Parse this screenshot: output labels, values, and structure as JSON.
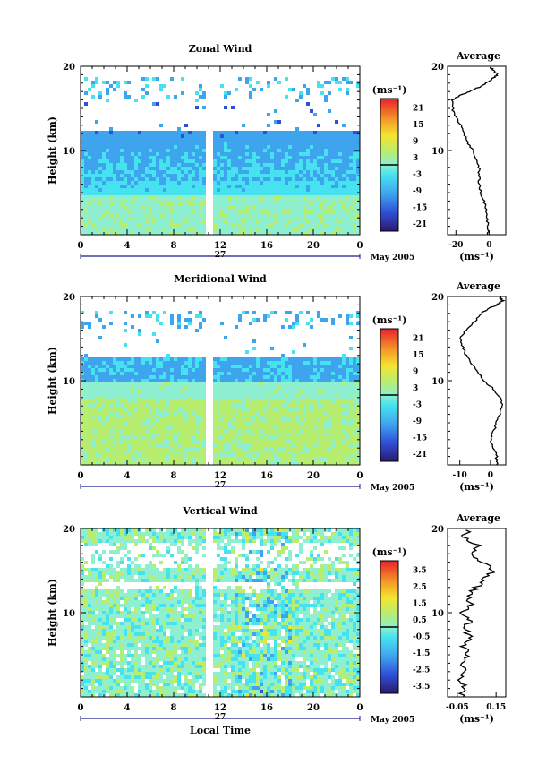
{
  "chart_data": [
    {
      "type": "heatmap",
      "title": "Zonal Wind",
      "ylabel": "Height (km)",
      "xlabel": "",
      "ylim": [
        0,
        20
      ],
      "xlim": [
        0,
        24
      ],
      "x_ticks": [
        "0",
        "4",
        "8",
        "12",
        "16",
        "20",
        "0"
      ],
      "y_ticks": [
        "20",
        "10"
      ],
      "date_day": "27",
      "date_label": "May 2005",
      "colorbar": {
        "unit": "(ms⁻¹)",
        "ticks": [
          "21",
          "15",
          "9",
          "3",
          "-3",
          "-9",
          "-15",
          "-21"
        ],
        "range": [
          -24,
          24
        ]
      },
      "average": {
        "title": "Average",
        "unit": "(ms⁻¹)",
        "x_ticks": [
          "-20",
          "0"
        ],
        "y_ticks": [
          "20",
          "10"
        ],
        "xlim": [
          -25,
          10
        ],
        "profile": [
          [
            0,
            -0.5
          ],
          [
            1,
            -1
          ],
          [
            2,
            -1
          ],
          [
            3,
            -2
          ],
          [
            4,
            -3
          ],
          [
            5,
            -5
          ],
          [
            6,
            -6
          ],
          [
            7,
            -6
          ],
          [
            8,
            -6
          ],
          [
            9,
            -8
          ],
          [
            10,
            -10
          ],
          [
            11,
            -13
          ],
          [
            12,
            -15
          ],
          [
            13,
            -17
          ],
          [
            14,
            -20
          ],
          [
            15,
            -22
          ],
          [
            16,
            -22
          ],
          [
            16.5,
            -18
          ],
          [
            17,
            -12
          ],
          [
            17.5,
            -6
          ],
          [
            18,
            -2
          ],
          [
            18.5,
            2
          ],
          [
            19,
            5
          ],
          [
            19.5,
            3
          ],
          [
            20,
            0
          ]
        ]
      }
    },
    {
      "type": "heatmap",
      "title": "Meridional Wind",
      "ylabel": "Height (km)",
      "xlabel": "",
      "ylim": [
        0,
        20
      ],
      "xlim": [
        0,
        24
      ],
      "x_ticks": [
        "0",
        "4",
        "8",
        "12",
        "16",
        "20",
        "0"
      ],
      "y_ticks": [
        "20",
        "10"
      ],
      "date_day": "27",
      "date_label": "May 2005",
      "colorbar": {
        "unit": "(ms⁻¹)",
        "ticks": [
          "21",
          "15",
          "9",
          "3",
          "-3",
          "-9",
          "-15",
          "-21"
        ],
        "range": [
          -24,
          24
        ]
      },
      "average": {
        "title": "Average",
        "unit": "(ms⁻¹)",
        "x_ticks": [
          "-10",
          "0"
        ],
        "y_ticks": [
          "20",
          "10"
        ],
        "xlim": [
          -14,
          5
        ],
        "profile": [
          [
            0,
            2
          ],
          [
            1,
            2
          ],
          [
            2,
            1
          ],
          [
            3,
            0
          ],
          [
            4,
            1
          ],
          [
            5,
            2
          ],
          [
            6,
            3
          ],
          [
            7,
            4
          ],
          [
            8,
            3
          ],
          [
            9,
            1
          ],
          [
            10,
            -2
          ],
          [
            11,
            -4
          ],
          [
            12,
            -6
          ],
          [
            13,
            -8
          ],
          [
            14,
            -9
          ],
          [
            15,
            -10
          ],
          [
            16,
            -8
          ],
          [
            17,
            -5
          ],
          [
            18,
            -3
          ],
          [
            18.5,
            -1
          ],
          [
            19,
            2
          ],
          [
            19.5,
            4
          ],
          [
            20,
            3
          ]
        ]
      }
    },
    {
      "type": "heatmap",
      "title": "Vertical Wind",
      "ylabel": "Height (km)",
      "xlabel": "Local Time",
      "ylim": [
        0,
        20
      ],
      "xlim": [
        0,
        24
      ],
      "x_ticks": [
        "0",
        "4",
        "8",
        "12",
        "16",
        "20",
        "0"
      ],
      "y_ticks": [
        "20",
        "10"
      ],
      "date_day": "27",
      "date_label": "May 2005",
      "colorbar": {
        "unit": "(ms⁻¹)",
        "ticks": [
          "3.5",
          "2.5",
          "1.5",
          "0.5",
          "-0.5",
          "-1.5",
          "-2.5",
          "-3.5"
        ],
        "range": [
          -4,
          4
        ]
      },
      "average": {
        "title": "Average",
        "unit": "(ms⁻¹)",
        "x_ticks": [
          "-0.05",
          "0.15"
        ],
        "y_ticks": [
          "20",
          "10"
        ],
        "xlim": [
          -0.1,
          0.2
        ],
        "profile": [
          [
            0,
            -0.03
          ],
          [
            1,
            -0.01
          ],
          [
            2,
            -0.04
          ],
          [
            3,
            0.0
          ],
          [
            4,
            -0.03
          ],
          [
            5,
            0.01
          ],
          [
            6,
            -0.02
          ],
          [
            7,
            0.02
          ],
          [
            8,
            -0.01
          ],
          [
            9,
            0.01
          ],
          [
            10,
            -0.03
          ],
          [
            11,
            0.02
          ],
          [
            12,
            0.0
          ],
          [
            13,
            0.05
          ],
          [
            14,
            0.09
          ],
          [
            15,
            0.14
          ],
          [
            16,
            0.08
          ],
          [
            17,
            0.03
          ],
          [
            18,
            0.06
          ],
          [
            19,
            -0.02
          ],
          [
            20,
            0.02
          ]
        ]
      }
    }
  ]
}
